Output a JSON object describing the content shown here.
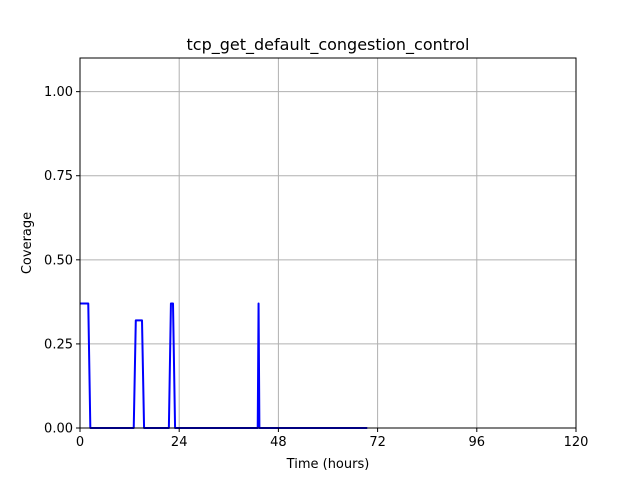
{
  "chart_data": {
    "type": "line",
    "title": "tcp_get_default_congestion_control",
    "xlabel": "Time (hours)",
    "ylabel": "Coverage",
    "xlim": [
      0,
      120
    ],
    "ylim": [
      0,
      1.1
    ],
    "grid": true,
    "xticks": [
      0,
      24,
      48,
      72,
      96,
      120
    ],
    "xtick_labels": [
      "0",
      "24",
      "48",
      "72",
      "96",
      "120"
    ],
    "yticks": [
      0,
      0.25,
      0.5,
      0.75,
      1.0
    ],
    "ytick_labels": [
      "0.00",
      "0.25",
      "0.50",
      "0.75",
      "1.00"
    ],
    "series": [
      {
        "color": "#0000ff",
        "x": [
          0,
          2,
          2.5,
          13,
          13.5,
          15,
          15.5,
          21.5,
          22,
          22.5,
          23,
          43,
          43.2,
          43.4,
          69.5
        ],
        "y": [
          0.37,
          0.37,
          0,
          0,
          0.32,
          0.32,
          0,
          0,
          0.37,
          0.37,
          0,
          0,
          0.37,
          0,
          0
        ]
      }
    ]
  }
}
